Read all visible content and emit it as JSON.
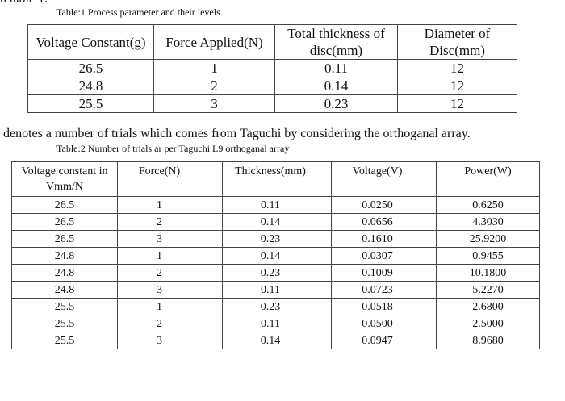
{
  "top_text": "n table 1.",
  "table1": {
    "caption": "Table:1 Process parameter and their levels",
    "header": [
      "Voltage Constant(g)",
      "Force Applied(N)",
      "Total thickness of disc(mm)",
      "Diameter of Disc(mm)"
    ],
    "rows": [
      [
        "26.5",
        "1",
        "0.11",
        "12"
      ],
      [
        "24.8",
        "2",
        "0.14",
        "12"
      ],
      [
        "25.5",
        "3",
        "0.23",
        "12"
      ]
    ]
  },
  "sentence": "denotes a number of trials which comes from Taguchi by considering the orthoganal array.",
  "table2": {
    "caption": "Table:2 Number of trials ar per Taguchi L9 orthoganal array",
    "header": [
      "Voltage constant in Vmm/N",
      "Force(N)",
      "Thickness(mm)",
      "Voltage(V)",
      "Power(W)"
    ],
    "rows": [
      [
        "26.5",
        "1",
        "0.11",
        "0.0250",
        "0.6250"
      ],
      [
        "26.5",
        "2",
        "0.14",
        "0.0656",
        "4.3030"
      ],
      [
        "26.5",
        "3",
        "0.23",
        "0.1610",
        "25.9200"
      ],
      [
        "24.8",
        "1",
        "0.14",
        "0.0307",
        "0.9455"
      ],
      [
        "24.8",
        "2",
        "0.23",
        "0.1009",
        "10.1800"
      ],
      [
        "24.8",
        "3",
        "0.11",
        "0.0723",
        "5.2270"
      ],
      [
        "25.5",
        "1",
        "0.23",
        "0.0518",
        "2.6800"
      ],
      [
        "25.5",
        "2",
        "0.11",
        "0.0500",
        "2.5000"
      ],
      [
        "25.5",
        "3",
        "0.14",
        "0.0947",
        "8.9680"
      ]
    ]
  }
}
